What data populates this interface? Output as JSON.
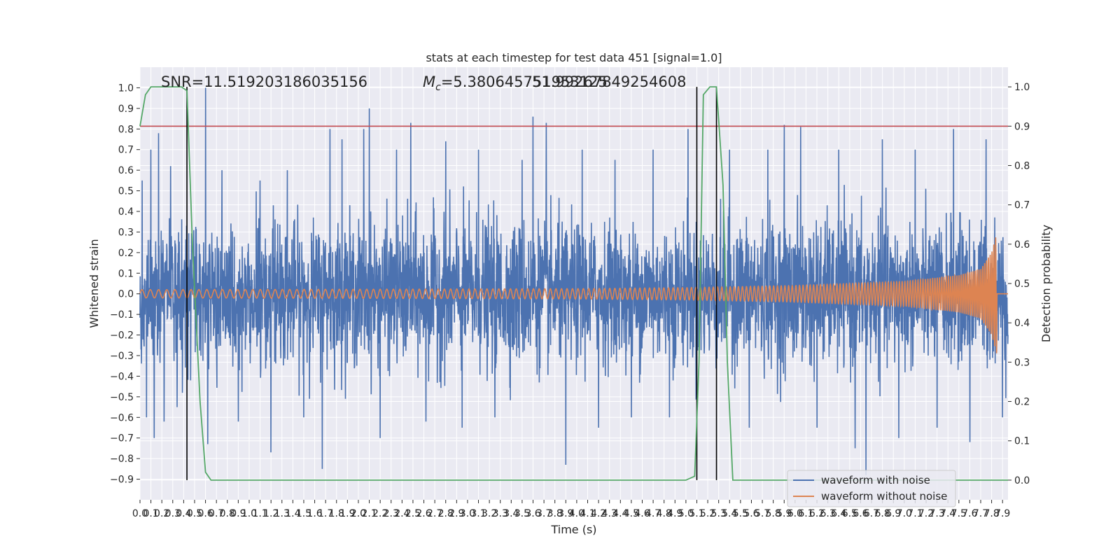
{
  "chart_data": {
    "type": "line",
    "title": "stats at each timestep for test data 451 [signal=1.0]",
    "annotations": {
      "snr": "SNR=11.519203186035156",
      "mc_prefix": "M",
      "mc_sub": "c",
      "mc_value": "=5.380645751953125",
      "overlap_value": "51.99267849254608"
    },
    "xlabel": "Time (s)",
    "ylabel": "Whitened strain",
    "ylabel_right": "Detection probability",
    "xlim": [
      0.0,
      7.95
    ],
    "ylim": [
      -1.0,
      1.1
    ],
    "ylim_right": [
      -0.05,
      1.05
    ],
    "x_ticks": [
      0.0,
      0.1,
      0.2,
      0.3,
      0.4,
      0.5,
      0.6,
      0.7,
      0.8,
      0.9,
      1.0,
      1.1,
      1.2,
      1.3,
      1.4,
      1.5,
      1.6,
      1.7,
      1.8,
      1.9,
      2.0,
      2.1,
      2.2,
      2.3,
      2.4,
      2.5,
      2.6,
      2.7,
      2.8,
      2.9,
      3.0,
      3.1,
      3.2,
      3.3,
      3.4,
      3.5,
      3.6,
      3.7,
      3.8,
      3.9,
      4.0,
      4.1,
      4.2,
      4.3,
      4.4,
      4.5,
      4.6,
      4.7,
      4.8,
      4.9,
      5.0,
      5.1,
      5.2,
      5.3,
      5.4,
      5.5,
      5.6,
      5.7,
      5.8,
      5.9,
      6.0,
      6.1,
      6.2,
      6.3,
      6.4,
      6.5,
      6.6,
      6.7,
      6.8,
      6.9,
      7.0,
      7.1,
      7.2,
      7.3,
      7.4,
      7.5,
      7.6,
      7.7,
      7.8,
      7.9
    ],
    "x_tick_labels": [
      "0.0",
      "0.1",
      "0.2",
      "0.3",
      "0.4",
      "0.5",
      "0.6",
      "0.7",
      "0.8",
      "0.9",
      "1.0",
      "1.1",
      "1.2",
      "1.3",
      "1.4",
      "1.5",
      "1.6",
      "1.7",
      "1.8",
      "1.9",
      "2.0",
      "2.1",
      "2.2",
      "2.3",
      "2.4",
      "2.5",
      "2.6",
      "2.7",
      "2.8",
      "2.9",
      "3.0",
      "3.1",
      "3.2",
      "3.3",
      "3.4",
      "3.5",
      "3.6",
      "3.7",
      "3.8",
      "3.9",
      "4.0",
      "4.1",
      "4.2",
      "4.3",
      "4.4",
      "4.5",
      "4.6",
      "4.7",
      "4.8",
      "4.9",
      "5.0",
      "5.1",
      "5.2",
      "5.3",
      "5.4",
      "5.5",
      "5.6",
      "5.7",
      "5.8",
      "5.9",
      "6.0",
      "6.1",
      "6.2",
      "6.3",
      "6.4",
      "6.5",
      "6.6",
      "6.7",
      "6.8",
      "6.9",
      "7.0",
      "7.1",
      "7.2",
      "7.3",
      "7.4",
      "7.5",
      "7.6",
      "7.7",
      "7.8",
      "7.9"
    ],
    "y_ticks": [
      -0.9,
      -0.8,
      -0.7,
      -0.6,
      -0.5,
      -0.4,
      -0.3,
      -0.2,
      -0.1,
      0.0,
      0.1,
      0.2,
      0.3,
      0.4,
      0.5,
      0.6,
      0.7,
      0.8,
      0.9,
      1.0
    ],
    "y_tick_labels": [
      "−0.9",
      "−0.8",
      "−0.7",
      "−0.6",
      "−0.5",
      "−0.4",
      "−0.3",
      "−0.2",
      "−0.1",
      "0.0",
      "0.1",
      "0.2",
      "0.3",
      "0.4",
      "0.5",
      "0.6",
      "0.7",
      "0.8",
      "0.9",
      "1.0"
    ],
    "y_right_ticks": [
      0.0,
      0.1,
      0.2,
      0.3,
      0.4,
      0.5,
      0.6,
      0.7,
      0.8,
      0.9,
      1.0
    ],
    "y_right_tick_labels": [
      "0.0",
      "0.1",
      "0.2",
      "0.3",
      "0.4",
      "0.5",
      "0.6",
      "0.7",
      "0.8",
      "0.9",
      "1.0"
    ],
    "threshold_right": 0.9,
    "vertical_lines_x": [
      0.43,
      5.1,
      5.28
    ],
    "grid": true,
    "legend": "bottom-right",
    "series": [
      {
        "name": "waveform with noise",
        "color": "#4c72b0",
        "noise_envelope": {
          "x": [
            0.0,
            1.0,
            2.0,
            3.0,
            4.0,
            5.0,
            6.0,
            7.0,
            7.95
          ],
          "y": [
            0.3,
            0.3,
            0.3,
            0.32,
            0.3,
            0.3,
            0.32,
            0.3,
            0.3
          ]
        },
        "spikes": [
          {
            "x": 0.02,
            "y": 0.55
          },
          {
            "x": 0.06,
            "y": -0.6
          },
          {
            "x": 0.1,
            "y": 0.7
          },
          {
            "x": 0.13,
            "y": -0.7
          },
          {
            "x": 0.17,
            "y": 0.78
          },
          {
            "x": 0.22,
            "y": -0.62
          },
          {
            "x": 0.28,
            "y": 0.62
          },
          {
            "x": 0.34,
            "y": -0.55
          },
          {
            "x": 0.6,
            "y": 1.0
          },
          {
            "x": 0.62,
            "y": -0.73
          },
          {
            "x": 0.75,
            "y": 0.6
          },
          {
            "x": 0.9,
            "y": -0.62
          },
          {
            "x": 1.1,
            "y": 0.55
          },
          {
            "x": 1.2,
            "y": -0.77
          },
          {
            "x": 1.35,
            "y": 0.6
          },
          {
            "x": 1.5,
            "y": -0.6
          },
          {
            "x": 1.67,
            "y": -0.85
          },
          {
            "x": 1.74,
            "y": 0.8
          },
          {
            "x": 1.85,
            "y": 0.75
          },
          {
            "x": 2.05,
            "y": 0.8
          },
          {
            "x": 2.1,
            "y": 0.9
          },
          {
            "x": 2.2,
            "y": -0.7
          },
          {
            "x": 2.35,
            "y": 0.7
          },
          {
            "x": 2.48,
            "y": 0.83
          },
          {
            "x": 2.62,
            "y": -0.62
          },
          {
            "x": 2.8,
            "y": 0.74
          },
          {
            "x": 2.95,
            "y": -0.65
          },
          {
            "x": 3.1,
            "y": 0.7
          },
          {
            "x": 3.25,
            "y": -0.6
          },
          {
            "x": 3.5,
            "y": 0.65
          },
          {
            "x": 3.6,
            "y": 0.86
          },
          {
            "x": 3.72,
            "y": 0.83
          },
          {
            "x": 3.9,
            "y": -0.83
          },
          {
            "x": 4.05,
            "y": 0.7
          },
          {
            "x": 4.2,
            "y": -0.65
          },
          {
            "x": 4.35,
            "y": 0.65
          },
          {
            "x": 4.5,
            "y": -0.6
          },
          {
            "x": 4.7,
            "y": 0.7
          },
          {
            "x": 4.85,
            "y": -0.6
          },
          {
            "x": 5.02,
            "y": 0.8
          },
          {
            "x": 5.4,
            "y": 0.7
          },
          {
            "x": 5.58,
            "y": -0.65
          },
          {
            "x": 5.75,
            "y": 0.7
          },
          {
            "x": 5.9,
            "y": 0.82
          },
          {
            "x": 6.05,
            "y": 0.81
          },
          {
            "x": 6.2,
            "y": -0.65
          },
          {
            "x": 6.4,
            "y": 0.7
          },
          {
            "x": 6.55,
            "y": -0.75
          },
          {
            "x": 6.65,
            "y": -0.88
          },
          {
            "x": 6.8,
            "y": 0.75
          },
          {
            "x": 6.95,
            "y": -0.7
          },
          {
            "x": 7.1,
            "y": 0.7
          },
          {
            "x": 7.3,
            "y": -0.65
          },
          {
            "x": 7.45,
            "y": 0.8
          },
          {
            "x": 7.6,
            "y": -0.72
          },
          {
            "x": 7.75,
            "y": 0.75
          },
          {
            "x": 7.9,
            "y": -0.6
          }
        ]
      },
      {
        "name": "waveform without noise",
        "color": "#dd8452",
        "chirp": {
          "x_start": 0.0,
          "x_merger": 7.85,
          "x_end": 7.95,
          "amplitude": {
            "x": [
              0.0,
              2.0,
              4.0,
              5.0,
              6.0,
              7.0,
              7.5,
              7.7,
              7.8,
              7.85
            ],
            "y": [
              0.02,
              0.022,
              0.025,
              0.03,
              0.04,
              0.06,
              0.09,
              0.12,
              0.2,
              0.3
            ]
          },
          "cycles_per_second": {
            "x": [
              0.0,
              2.0,
              4.0,
              5.0,
              6.0,
              7.0,
              7.8
            ],
            "y": [
              13,
              16,
              20,
              24,
              30,
              40,
              60
            ]
          }
        }
      },
      {
        "name": "detection probability",
        "color": "#55a868",
        "axis": "right",
        "x": [
          0.0,
          0.05,
          0.1,
          0.2,
          0.3,
          0.38,
          0.43,
          0.48,
          0.55,
          0.6,
          0.65,
          0.7,
          1.0,
          2.0,
          3.0,
          4.0,
          5.0,
          5.08,
          5.12,
          5.16,
          5.22,
          5.28,
          5.34,
          5.38,
          5.43,
          5.5,
          6.0,
          7.0,
          7.95
        ],
        "y": [
          0.9,
          0.98,
          1.0,
          1.0,
          1.0,
          1.0,
          0.99,
          0.6,
          0.2,
          0.02,
          0.0,
          0.0,
          0.0,
          0.0,
          0.0,
          0.0,
          0.0,
          0.01,
          0.3,
          0.98,
          1.0,
          1.0,
          0.75,
          0.3,
          0.0,
          0.0,
          0.0,
          0.0,
          0.0
        ]
      }
    ],
    "legend_entries": [
      "waveform with noise",
      "waveform without noise"
    ],
    "colors": {
      "background": "#eaeaf2",
      "grid": "#ffffff",
      "threshold": "#c44e52",
      "vline": "#000000"
    }
  }
}
